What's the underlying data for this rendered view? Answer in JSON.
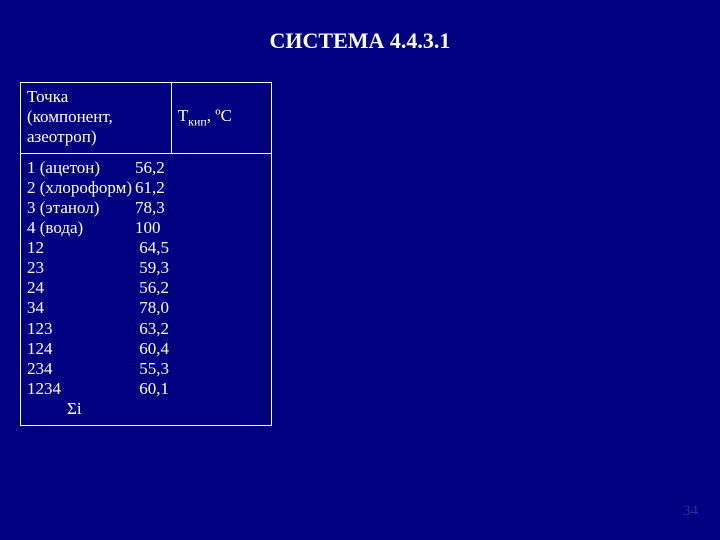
{
  "title": "СИСТЕМА 4.4.3.1",
  "header": {
    "col1_line1": "Точка",
    "col1_line2": "(компонент,",
    "col1_line3": " азеотроп)",
    "col2_pre": "Т",
    "col2_sub": "кип",
    "col2_post": ", ºС"
  },
  "rows": [
    {
      "label": "1 (ацетон)",
      "value": "56,2"
    },
    {
      "label": "2 (хлороформ)",
      "value": "61,2"
    },
    {
      "label": "3 (этанол)",
      "value": "78,3"
    },
    {
      "label": "4 (вода)",
      "value": "100"
    },
    {
      "label": "12",
      "value": " 64,5"
    },
    {
      "label": "23",
      "value": " 59,3"
    },
    {
      "label": "24",
      "value": " 56,2"
    },
    {
      "label": "34",
      "value": " 78,0"
    },
    {
      "label": "123",
      "value": " 63,2"
    },
    {
      "label": "124",
      "value": " 60,4"
    },
    {
      "label": "234",
      "value": " 55,3"
    },
    {
      "label": "1234",
      "value": " 60,1"
    }
  ],
  "sigma": "Σi",
  "page_number": "34",
  "colors": {
    "background": "#000080",
    "text": "#ffffff",
    "border": "#ffffff"
  }
}
